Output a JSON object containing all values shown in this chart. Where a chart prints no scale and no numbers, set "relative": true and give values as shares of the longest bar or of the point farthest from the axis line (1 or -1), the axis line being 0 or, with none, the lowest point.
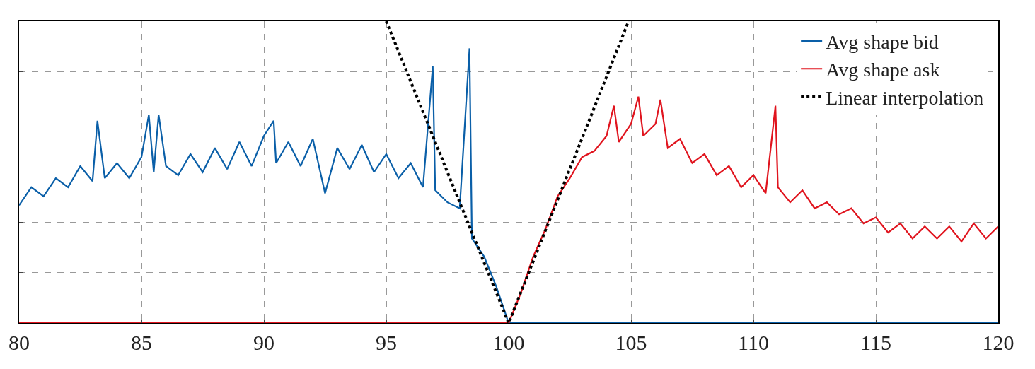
{
  "chart_data": {
    "type": "line",
    "relative": true,
    "xlim": [
      80,
      120
    ],
    "xticks": [
      80,
      85,
      90,
      95,
      100,
      105,
      110,
      115,
      120
    ],
    "grid": true,
    "legend": "top right",
    "tick_labels": "x",
    "marker": "none",
    "series": [
      {
        "name": "Avg shape bid",
        "color": "#0a5fa8",
        "line_style": "solid",
        "x": [
          80,
          80.5,
          81,
          81.5,
          82,
          82.5,
          83,
          83.2,
          83.5,
          84,
          84.5,
          85,
          85.3,
          85.5,
          85.7,
          86,
          86.5,
          87,
          87.5,
          88,
          88.5,
          89,
          89.5,
          90,
          90.4,
          90.5,
          91,
          91.5,
          92,
          92.5,
          93,
          93.5,
          94,
          94.5,
          95,
          95.5,
          96,
          96.5,
          96.9,
          97,
          97.5,
          98,
          98.4,
          98.5,
          99,
          99.5,
          100,
          100.5,
          120
        ],
        "values": [
          0.39,
          0.45,
          0.42,
          0.48,
          0.45,
          0.52,
          0.47,
          0.67,
          0.48,
          0.53,
          0.48,
          0.55,
          0.69,
          0.5,
          0.69,
          0.52,
          0.49,
          0.56,
          0.5,
          0.58,
          0.51,
          0.6,
          0.52,
          0.62,
          0.67,
          0.53,
          0.6,
          0.52,
          0.61,
          0.43,
          0.58,
          0.51,
          0.59,
          0.5,
          0.56,
          0.48,
          0.53,
          0.45,
          0.85,
          0.44,
          0.4,
          0.38,
          0.91,
          0.28,
          0.22,
          0.12,
          0,
          0,
          0
        ]
      },
      {
        "name": "Avg shape ask",
        "color": "#e0141e",
        "line_style": "solid",
        "x": [
          80,
          99.5,
          100,
          100.5,
          101,
          101.5,
          102,
          102.5,
          103,
          103.5,
          104,
          104.3,
          104.5,
          105,
          105.3,
          105.5,
          106,
          106.2,
          106.5,
          107,
          107.5,
          108,
          108.5,
          109,
          109.5,
          110,
          110.5,
          110.9,
          111,
          111.5,
          112,
          112.5,
          113,
          113.5,
          114,
          114.5,
          115,
          115.5,
          116,
          116.5,
          117,
          117.5,
          118,
          118.5,
          119,
          119.5,
          120
        ],
        "values": [
          0,
          0,
          0,
          0.1,
          0.22,
          0.31,
          0.42,
          0.48,
          0.55,
          0.57,
          0.62,
          0.72,
          0.6,
          0.66,
          0.75,
          0.62,
          0.66,
          0.74,
          0.58,
          0.61,
          0.53,
          0.56,
          0.49,
          0.52,
          0.45,
          0.49,
          0.43,
          0.72,
          0.45,
          0.4,
          0.44,
          0.38,
          0.4,
          0.36,
          0.38,
          0.33,
          0.35,
          0.3,
          0.33,
          0.28,
          0.32,
          0.28,
          0.32,
          0.27,
          0.33,
          0.28,
          0.32
        ]
      },
      {
        "name": "Linear interpolation",
        "color": "#000000",
        "line_style": "dotted",
        "x": [
          95.0,
          100,
          104.9
        ],
        "values": [
          1,
          0,
          1
        ]
      }
    ]
  }
}
